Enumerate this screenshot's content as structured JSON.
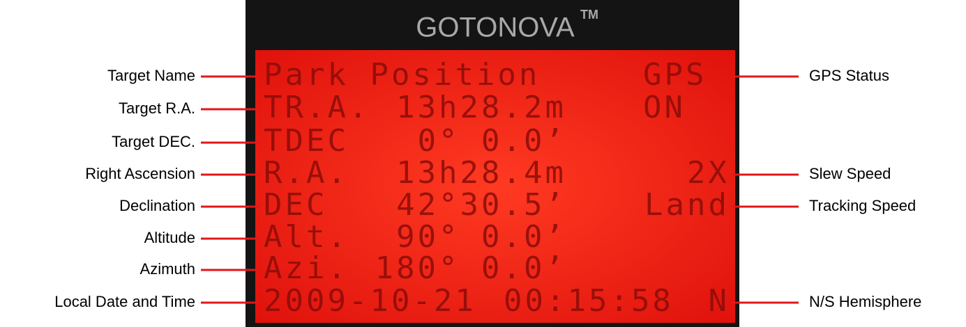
{
  "header": {
    "title": "GOTONOVA",
    "trademark": "TM"
  },
  "screen": {
    "rows": [
      {
        "label": "Park Position",
        "right": "GPS",
        "left_note": "Target Name",
        "right_note": "GPS Status"
      },
      {
        "label": "TR.A.",
        "value": "13h28.2m",
        "right": "ON",
        "left_note": "Target R.A."
      },
      {
        "label": "TDEC",
        "value": "0° 0.0’",
        "left_note": "Target DEC."
      },
      {
        "label": "R.A.",
        "value": "13h28.4m",
        "right": "2X",
        "left_note": "Right Ascension",
        "right_note": "Slew Speed"
      },
      {
        "label": "DEC",
        "value": "42°30.5’",
        "right": "Land",
        "left_note": "Declination",
        "right_note": "Tracking Speed"
      },
      {
        "label": "Alt.",
        "value": "90° 0.0’",
        "left_note": "Altitude"
      },
      {
        "label": "Azi.",
        "value": "180° 0.0’",
        "left_note": "Azimuth"
      },
      {
        "label": "2009-10-21",
        "value": "00:15:58",
        "right": "N",
        "left_note": "Local Date and Time",
        "right_note": "N/S Hemisphere"
      }
    ]
  }
}
